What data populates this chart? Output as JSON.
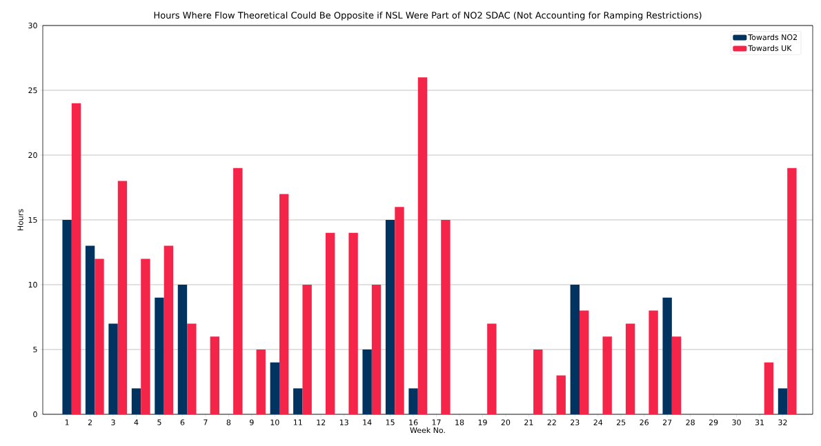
{
  "chart_data": {
    "type": "bar",
    "title": "Hours Where Flow Theoretical Could Be Opposite if NSL Were Part of NO2 SDAC (Not Accounting for Ramping Restrictions)",
    "xlabel": "Week No.",
    "ylabel": "Hours",
    "categories": [
      "1",
      "2",
      "3",
      "4",
      "5",
      "6",
      "7",
      "8",
      "9",
      "10",
      "11",
      "12",
      "13",
      "14",
      "15",
      "16",
      "17",
      "18",
      "19",
      "20",
      "21",
      "22",
      "23",
      "24",
      "25",
      "26",
      "27",
      "28",
      "29",
      "30",
      "31",
      "32"
    ],
    "series": [
      {
        "name": "Towards NO2",
        "color": "#003360",
        "values": [
          15,
          13,
          7,
          2,
          9,
          10,
          0,
          0,
          0,
          4,
          2,
          0,
          0,
          5,
          15,
          2,
          0,
          0,
          0,
          0,
          0,
          0,
          10,
          0,
          0,
          0,
          9,
          0,
          0,
          0,
          0,
          2
        ]
      },
      {
        "name": "Towards UK",
        "color": "#f42549",
        "values": [
          24,
          12,
          18,
          12,
          13,
          7,
          6,
          19,
          5,
          17,
          10,
          14,
          14,
          10,
          16,
          26,
          15,
          0,
          7,
          0,
          5,
          3,
          8,
          6,
          7,
          8,
          6,
          0,
          0,
          0,
          4,
          19
        ]
      }
    ],
    "ylim": [
      0,
      30
    ],
    "yticks": [
      0,
      5,
      10,
      15,
      20,
      25,
      30
    ],
    "grid": "y",
    "legend": "top right"
  }
}
